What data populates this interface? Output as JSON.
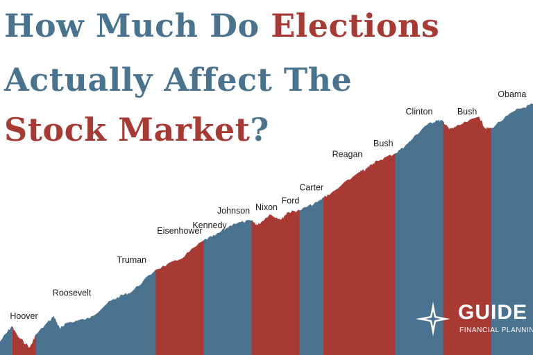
{
  "headline": {
    "line1_a": "How Much Do ",
    "line1_b": "Elections",
    "line2": "Actually Affect The",
    "line3_a": "Stock Market",
    "line3_b": "?"
  },
  "colors": {
    "republican": "#a83a33",
    "democrat": "#4a7390",
    "title_blue": "#4a7390",
    "title_red": "#a83a33"
  },
  "logo": {
    "icon": "compass-star-icon",
    "word": "GUIDE",
    "sub": "FINANCIAL PLANNING"
  },
  "chart_data": {
    "type": "area",
    "title": "",
    "xlabel": "",
    "ylabel": "",
    "scale": "log",
    "grid": false,
    "legend": "none",
    "x_range": [
      1927,
      2016
    ],
    "y_range": [
      1,
      10000
    ],
    "terms": [
      {
        "president": "Hoover",
        "party": "R",
        "start": 1929,
        "end": 1933
      },
      {
        "president": "Roosevelt",
        "party": "D",
        "start": 1933,
        "end": 1945
      },
      {
        "president": "Truman",
        "party": "D",
        "start": 1945,
        "end": 1953
      },
      {
        "president": "Eisenhower",
        "party": "R",
        "start": 1953,
        "end": 1961
      },
      {
        "president": "Kennedy",
        "party": "D",
        "start": 1961,
        "end": 1963
      },
      {
        "president": "Johnson",
        "party": "D",
        "start": 1963,
        "end": 1969
      },
      {
        "president": "Nixon",
        "party": "R",
        "start": 1969,
        "end": 1974
      },
      {
        "president": "Ford",
        "party": "R",
        "start": 1974,
        "end": 1977
      },
      {
        "president": "Carter",
        "party": "D",
        "start": 1977,
        "end": 1981
      },
      {
        "president": "Reagan",
        "party": "R",
        "start": 1981,
        "end": 1989
      },
      {
        "president": "Bush",
        "party": "R",
        "start": 1989,
        "end": 1993
      },
      {
        "president": "Clinton",
        "party": "D",
        "start": 1993,
        "end": 2001
      },
      {
        "president": "Bush",
        "party": "R",
        "start": 2001,
        "end": 2009
      },
      {
        "president": "Obama",
        "party": "D",
        "start": 2009,
        "end": 2016
      }
    ],
    "series": [
      {
        "x": [
          1927,
          1929,
          1930,
          1932,
          1933,
          1936,
          1937,
          1938,
          1942,
          1945,
          1947,
          1949,
          1953,
          1957,
          1961,
          1963,
          1966,
          1969,
          1970,
          1972,
          1974,
          1975,
          1977,
          1980,
          1981,
          1982,
          1987,
          1988,
          1989,
          1990,
          1993,
          1995,
          1998,
          2000,
          2001,
          2002,
          2003,
          2007,
          2008,
          2009,
          2013,
          2016
        ],
        "y": [
          1.0,
          1.8,
          1.2,
          0.8,
          1.3,
          2.6,
          1.6,
          2.0,
          2.4,
          4.3,
          5.5,
          6.5,
          15,
          22,
          45,
          55,
          85,
          95,
          80,
          120,
          100,
          130,
          140,
          190,
          230,
          250,
          600,
          640,
          800,
          900,
          1200,
          1700,
          3400,
          4200,
          4000,
          3000,
          3200,
          4800,
          3100,
          3100,
          6000,
          7700
        ]
      }
    ]
  }
}
